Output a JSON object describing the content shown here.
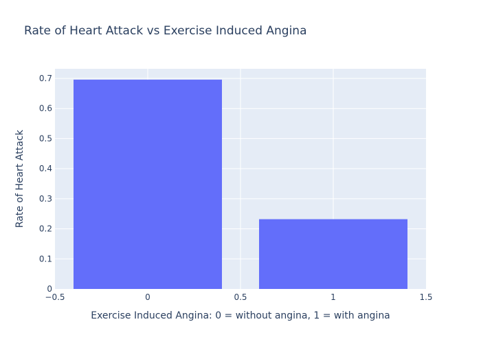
{
  "chart_data": {
    "type": "bar",
    "title": "Rate of Heart Attack vs Exercise Induced Angina",
    "xlabel": "Exercise Induced Angina: 0 = without angina, 1 = with angina",
    "ylabel": "Rate of Heart Attack",
    "x": [
      0,
      1
    ],
    "values": [
      0.696,
      0.232
    ],
    "bar_width": 0.8,
    "xlim": [
      -0.5,
      1.5
    ],
    "ylim": [
      0,
      0.7
    ],
    "xticks": [
      -0.5,
      0,
      0.5,
      1,
      1.5
    ],
    "xtick_labels": [
      "−0.5",
      "0",
      "0.5",
      "1",
      "1.5"
    ],
    "yticks": [
      0,
      0.1,
      0.2,
      0.3,
      0.4,
      0.5,
      0.6,
      0.7
    ],
    "ytick_labels": [
      "0",
      "0.1",
      "0.2",
      "0.3",
      "0.4",
      "0.5",
      "0.6",
      "0.7"
    ],
    "grid": true,
    "colors": {
      "bar": "#636efa",
      "plot_bg": "#e5ecf6",
      "grid": "#ffffff",
      "text": "#2a3f5f"
    }
  }
}
